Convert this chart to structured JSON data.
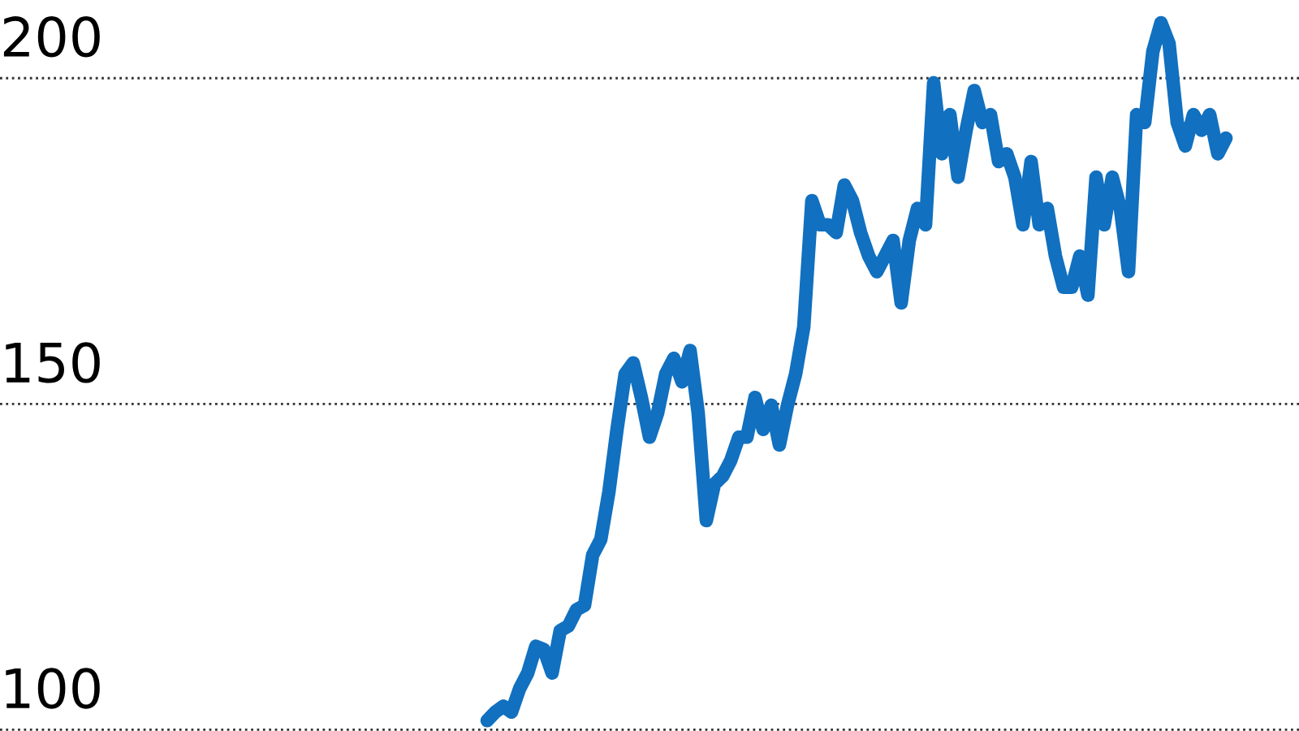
{
  "chart_data": {
    "type": "line",
    "categories": [
      null,
      null,
      null,
      null,
      null,
      null,
      null,
      null,
      null,
      null,
      null,
      null,
      null,
      null,
      null,
      null,
      null,
      null,
      null,
      null,
      null,
      null,
      null,
      null,
      null,
      null,
      null,
      null,
      null,
      null,
      null,
      null,
      null,
      null,
      null,
      null,
      null,
      null,
      null,
      null,
      null,
      null,
      null,
      null,
      null,
      null,
      null,
      null,
      null,
      null,
      null,
      null,
      null,
      null,
      null,
      null,
      null,
      null,
      null,
      null,
      null,
      null,
      null,
      null,
      null,
      null,
      null,
      null,
      null,
      null,
      null,
      null,
      null,
      null,
      null,
      null,
      null,
      null,
      null,
      null,
      null,
      null,
      null,
      null,
      null,
      null,
      null,
      null,
      null,
      null,
      null,
      null,
      null,
      null,
      null,
      null,
      null,
      null,
      null,
      null,
      null,
      null,
      null,
      null,
      null,
      null,
      null,
      null,
      null,
      null,
      null,
      null,
      null,
      null,
      null,
      null,
      null,
      null,
      null,
      null,
      null,
      null,
      null,
      null,
      null,
      null,
      null,
      null,
      null,
      null,
      null,
      null,
      null,
      null,
      null,
      null,
      null,
      null,
      null,
      null,
      null,
      null,
      null,
      null,
      null,
      null,
      null,
      null,
      null,
      null,
      null,
      null,
      null,
      null,
      null,
      null,
      null,
      null,
      null,
      null,
      null
    ],
    "series": [
      {
        "color": "#1170bf",
        "values": [
          null,
          null,
          null,
          null,
          null,
          null,
          null,
          null,
          null,
          null,
          null,
          null,
          null,
          null,
          null,
          null,
          null,
          null,
          null,
          null,
          null,
          null,
          null,
          null,
          null,
          null,
          null,
          null,
          null,
          null,
          null,
          null,
          null,
          null,
          null,
          null,
          null,
          null,
          null,
          null,
          null,
          null,
          null,
          null,
          null,
          null,
          null,
          null,
          null,
          null,
          null,
          null,
          null,
          null,
          null,
          null,
          null,
          null,
          null,
          null,
          101.4,
          102.7,
          103.6,
          102.7,
          106.3,
          108.7,
          112.8,
          112.3,
          108.7,
          115.2,
          115.9,
          118.4,
          119.1,
          126.8,
          129.2,
          136.5,
          146.1,
          154.6,
          156.3,
          151.0,
          144.9,
          148.6,
          154.6,
          157.0,
          153.4,
          158.2,
          148.6,
          132.1,
          137.7,
          138.9,
          141.3,
          144.9,
          144.9,
          151.0,
          146.1,
          149.8,
          143.7,
          149.8,
          154.6,
          161.8,
          181.2,
          177.5,
          177.5,
          176.3,
          183.6,
          181.2,
          176.3,
          172.7,
          170.3,
          172.7,
          175.1,
          165.5,
          175.1,
          180.0,
          177.5,
          199.3,
          188.4,
          194.4,
          184.8,
          192.0,
          198.1,
          193.2,
          194.4,
          187.2,
          188.4,
          184.8,
          177.5,
          187.2,
          177.5,
          180.0,
          172.7,
          167.9,
          167.9,
          172.7,
          166.7,
          184.8,
          177.5,
          184.8,
          180.0,
          170.3,
          194.4,
          193.2,
          204.1,
          208.5,
          205.3,
          193.2,
          189.6,
          194.4,
          192.0,
          194.4,
          188.4,
          190.8,
          null,
          null,
          null,
          null,
          null,
          null,
          null,
          null,
          null
        ]
      }
    ],
    "ylim": [
      99.8,
      212
    ],
    "yticks": [
      100,
      150,
      200
    ],
    "grid": "y",
    "tick_labels": "y",
    "legend": false,
    "marker": "none",
    "line_style": "solid"
  }
}
